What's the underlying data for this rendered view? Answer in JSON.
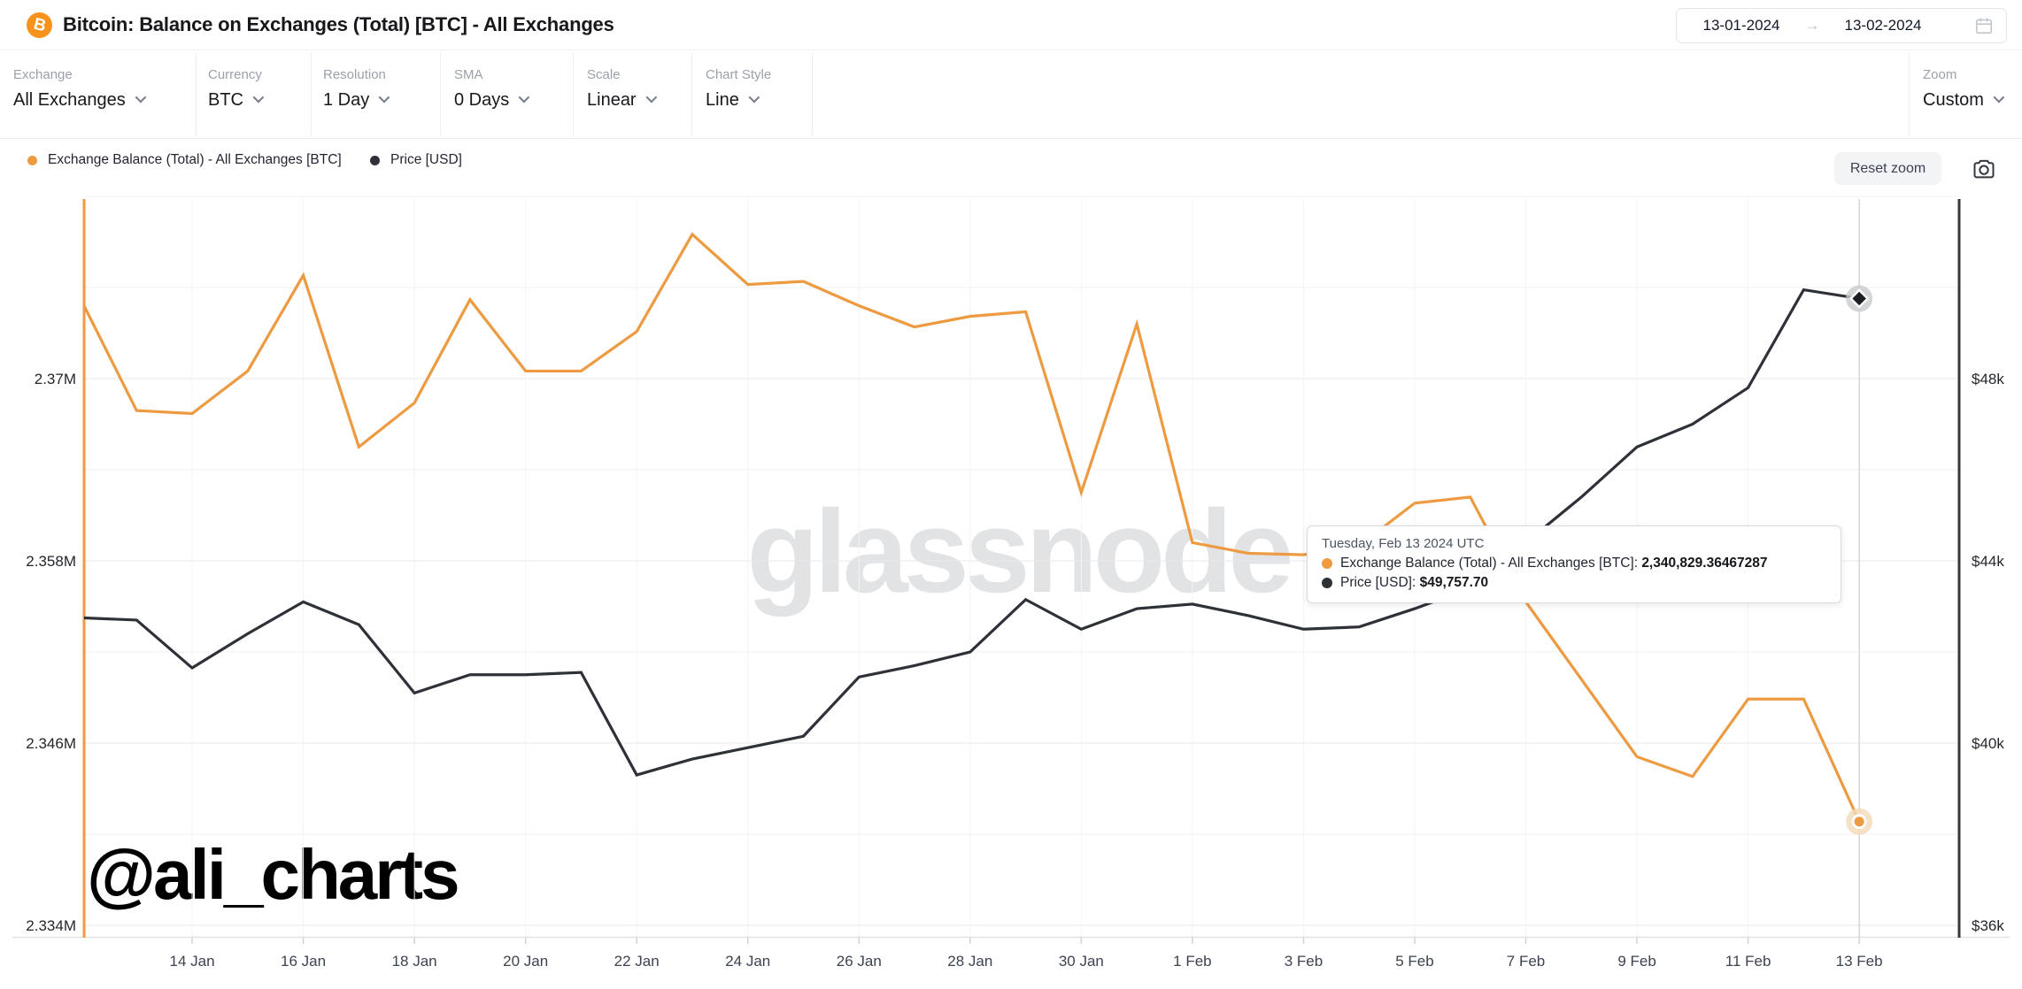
{
  "header": {
    "title": "Bitcoin: Balance on Exchanges (Total) [BTC] - All Exchanges",
    "date_from": "13-01-2024",
    "date_to": "13-02-2024",
    "date_arrow": "→"
  },
  "toolbar": {
    "controls": [
      {
        "label": "Exchange",
        "value": "All Exchanges"
      },
      {
        "label": "Currency",
        "value": "BTC"
      },
      {
        "label": "Resolution",
        "value": "1 Day"
      },
      {
        "label": "SMA",
        "value": "0 Days"
      },
      {
        "label": "Scale",
        "value": "Linear"
      },
      {
        "label": "Chart Style",
        "value": "Line"
      }
    ],
    "zoom": {
      "label": "Zoom",
      "value": "Custom"
    }
  },
  "legend": {
    "items": [
      {
        "label": "Exchange Balance (Total) - All Exchanges [BTC]",
        "color": "#ED9A41"
      },
      {
        "label": "Price [USD]",
        "color": "#2E3238"
      }
    ]
  },
  "actions": {
    "reset_zoom_label": "Reset zoom"
  },
  "watermark": {
    "brand": "glassnode",
    "author": "@ali_charts"
  },
  "tooltip": {
    "date": "Tuesday, Feb 13 2024 UTC",
    "rows": [
      {
        "label": "Exchange Balance (Total) - All Exchanges [BTC]:",
        "value": "2,340,829.36467287",
        "color": "#ED9A41"
      },
      {
        "label": "Price [USD]:",
        "value": "$49,757.70",
        "color": "#2E3238"
      }
    ]
  },
  "chart_data": {
    "type": "line",
    "title": "Bitcoin: Balance on Exchanges (Total) [BTC] - All Exchanges",
    "legend_position": "top-left",
    "grid": true,
    "x": [
      "12 Jan",
      "13 Jan",
      "14 Jan",
      "15 Jan",
      "16 Jan",
      "17 Jan",
      "18 Jan",
      "19 Jan",
      "20 Jan",
      "21 Jan",
      "22 Jan",
      "23 Jan",
      "24 Jan",
      "25 Jan",
      "26 Jan",
      "27 Jan",
      "28 Jan",
      "29 Jan",
      "30 Jan",
      "31 Jan",
      "1 Feb",
      "2 Feb",
      "3 Feb",
      "4 Feb",
      "5 Feb",
      "6 Feb",
      "7 Feb",
      "8 Feb",
      "9 Feb",
      "10 Feb",
      "11 Feb",
      "12 Feb",
      "13 Feb"
    ],
    "x_tick_labels": [
      "14 Jan",
      "16 Jan",
      "18 Jan",
      "20 Jan",
      "22 Jan",
      "24 Jan",
      "26 Jan",
      "28 Jan",
      "30 Jan",
      "1 Feb",
      "3 Feb",
      "5 Feb",
      "7 Feb",
      "9 Feb",
      "11 Feb",
      "13 Feb"
    ],
    "series": [
      {
        "name": "Exchange Balance (Total) - All Exchanges [BTC]",
        "axis": "left",
        "color": "#ED9A41",
        "values": [
          2375200,
          2367900,
          2367700,
          2370500,
          2376800,
          2365500,
          2368400,
          2375200,
          2370500,
          2370500,
          2373100,
          2379500,
          2376200,
          2376400,
          2374800,
          2373400,
          2374100,
          2374400,
          2362500,
          2373600,
          2359200,
          2358500,
          2358400,
          2359000,
          2361800,
          2362200,
          2355300,
          2350200,
          2345100,
          2343800,
          2348900,
          2348900,
          2340829.36467287
        ]
      },
      {
        "name": "Price [USD]",
        "axis": "right",
        "color": "#2E3238",
        "values": [
          42750,
          42700,
          41650,
          42400,
          43100,
          42600,
          41100,
          41500,
          41500,
          41550,
          39300,
          39650,
          39900,
          40150,
          41450,
          41700,
          42000,
          43150,
          42500,
          42950,
          43050,
          42800,
          42500,
          42550,
          42950,
          43400,
          44400,
          45400,
          46500,
          47000,
          47800,
          49950,
          49757.7
        ]
      }
    ],
    "y_left": {
      "tick_labels": [
        "2.37M",
        "2.358M",
        "2.346M",
        "2.334M"
      ],
      "tick_values": [
        2370000,
        2358000,
        2346000,
        2334000
      ]
    },
    "y_right": {
      "tick_labels": [
        "$48k",
        "$44k",
        "$40k",
        "$36k"
      ],
      "tick_values": [
        48000,
        44000,
        40000,
        36000
      ]
    },
    "highlighted_point": {
      "x": "13 Feb",
      "balance": 2340829.36467287,
      "price": 49757.7
    }
  }
}
